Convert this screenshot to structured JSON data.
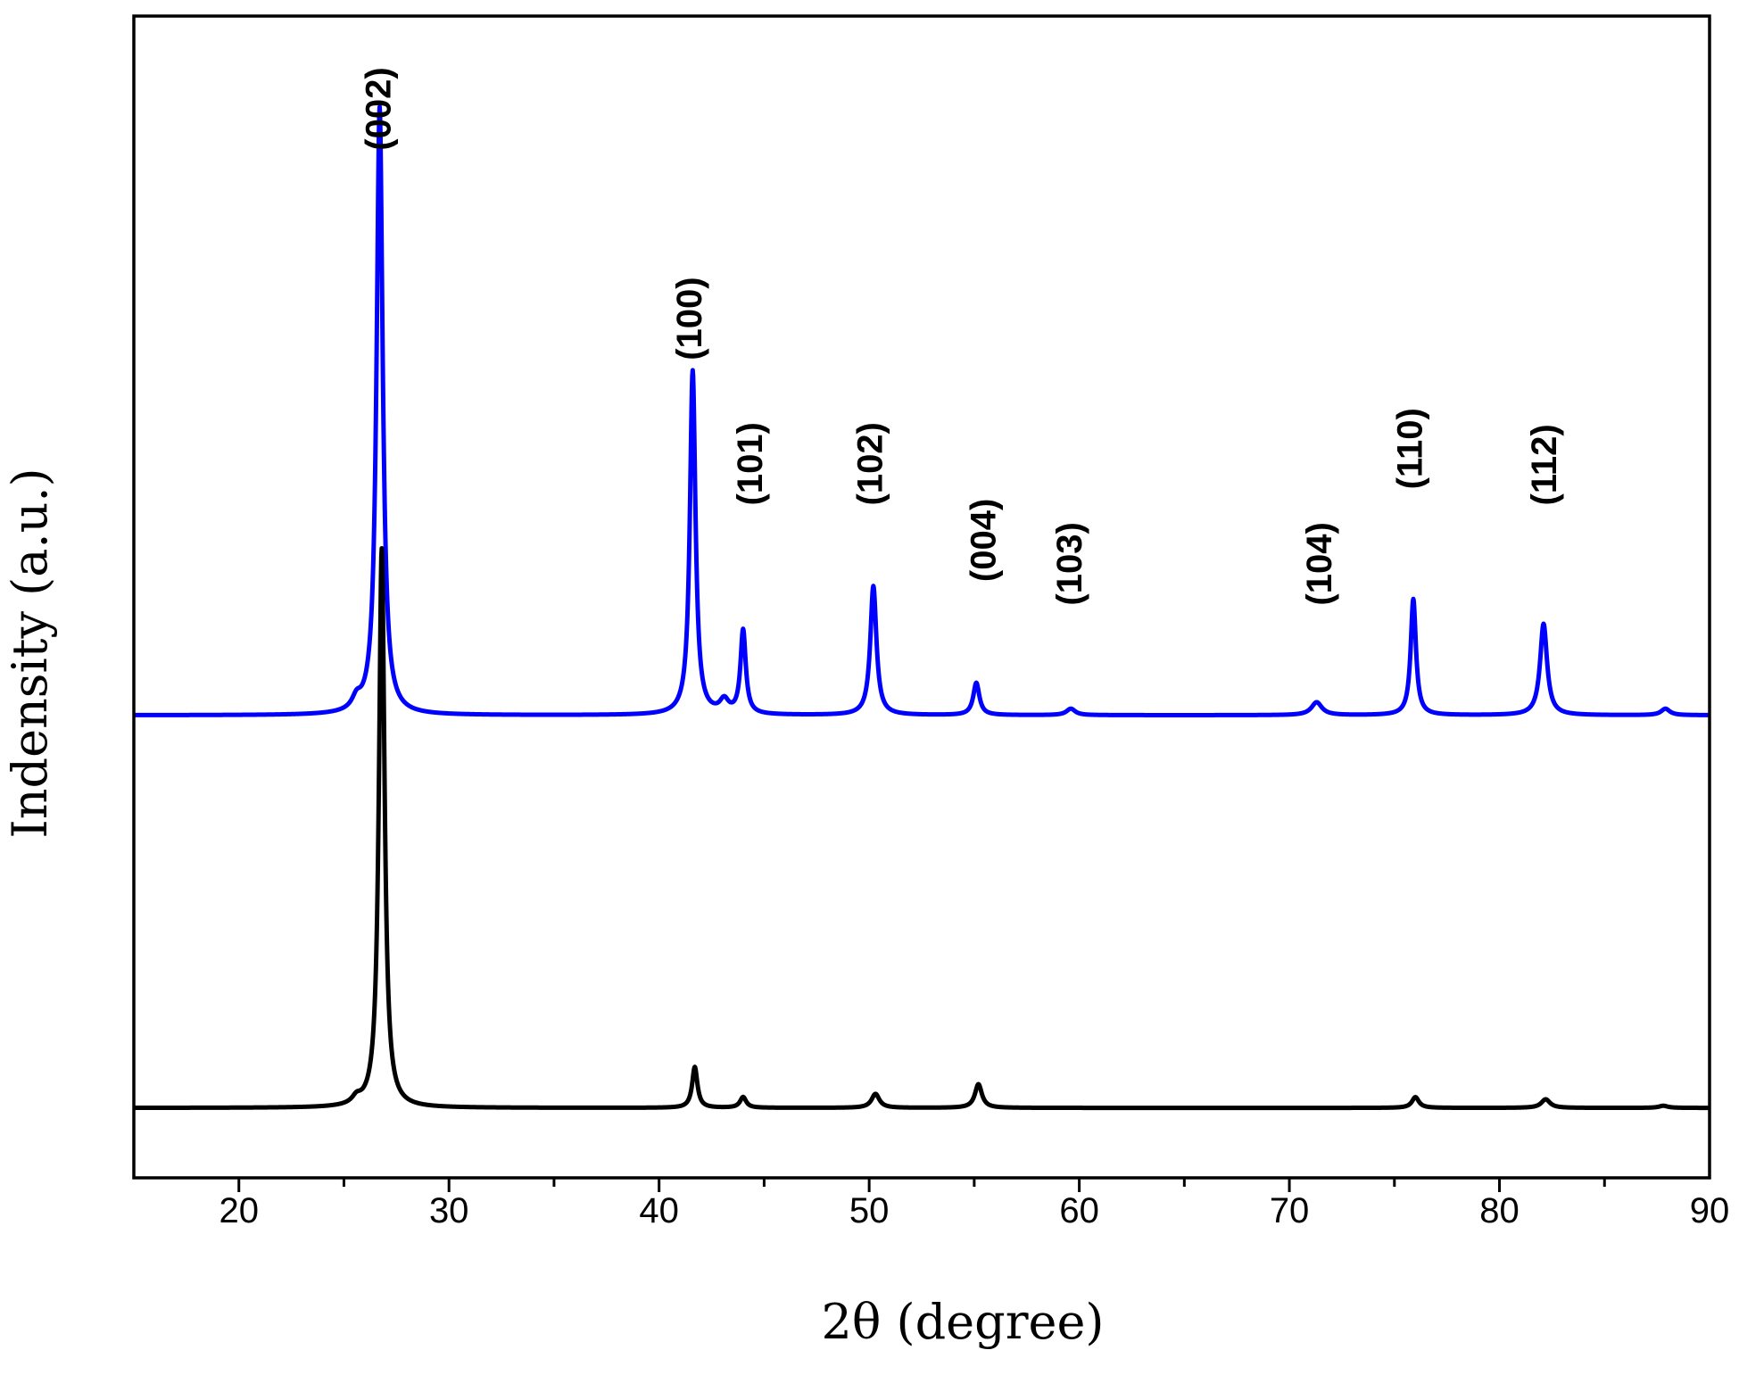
{
  "chart_data": {
    "type": "line",
    "title": "",
    "xlabel": "2θ (degree)",
    "ylabel": "Indensity (a.u.)",
    "xlim": [
      15,
      90
    ],
    "ylim": [
      0,
      1.08
    ],
    "x_major_ticks": [
      20,
      30,
      40,
      50,
      60,
      70,
      80,
      90
    ],
    "x_tick_labels": [
      "20",
      "30",
      "40",
      "50",
      "60",
      "70",
      "80",
      "90"
    ],
    "x_minor_step": 5,
    "y_tick_labels": false,
    "grid": false,
    "legend": "none",
    "series": [
      {
        "color": "#0000ff",
        "baseline": 0.43,
        "peaks": [
          {
            "x": 25.6,
            "height": 0.01,
            "width": 0.5
          },
          {
            "x": 26.7,
            "height": 0.565,
            "width": 0.35
          },
          {
            "x": 41.6,
            "height": 0.32,
            "width": 0.32
          },
          {
            "x": 43.1,
            "height": 0.012,
            "width": 0.5
          },
          {
            "x": 44.0,
            "height": 0.078,
            "width": 0.3
          },
          {
            "x": 50.2,
            "height": 0.12,
            "width": 0.35
          },
          {
            "x": 55.1,
            "height": 0.03,
            "width": 0.35
          },
          {
            "x": 59.6,
            "height": 0.006,
            "width": 0.5
          },
          {
            "x": 71.3,
            "height": 0.012,
            "width": 0.6
          },
          {
            "x": 75.9,
            "height": 0.108,
            "width": 0.3
          },
          {
            "x": 82.1,
            "height": 0.085,
            "width": 0.4
          },
          {
            "x": 87.9,
            "height": 0.006,
            "width": 0.5
          }
        ]
      },
      {
        "color": "#000000",
        "baseline": 0.065,
        "peaks": [
          {
            "x": 25.6,
            "height": 0.006,
            "width": 0.5
          },
          {
            "x": 26.8,
            "height": 0.52,
            "width": 0.32
          },
          {
            "x": 41.7,
            "height": 0.038,
            "width": 0.3
          },
          {
            "x": 44.0,
            "height": 0.01,
            "width": 0.35
          },
          {
            "x": 50.3,
            "height": 0.013,
            "width": 0.45
          },
          {
            "x": 55.2,
            "height": 0.022,
            "width": 0.4
          },
          {
            "x": 76.0,
            "height": 0.01,
            "width": 0.4
          },
          {
            "x": 82.2,
            "height": 0.008,
            "width": 0.5
          },
          {
            "x": 87.8,
            "height": 0.002,
            "width": 0.5
          }
        ]
      }
    ],
    "annotations": [
      {
        "text": "(002)",
        "x": 27.2,
        "y": 0.955
      },
      {
        "text": "(100)",
        "x": 42.0,
        "y": 0.76
      },
      {
        "text": "(101)",
        "x": 44.9,
        "y": 0.625
      },
      {
        "text": "(102)",
        "x": 50.6,
        "y": 0.625
      },
      {
        "text": "(004)",
        "x": 56.0,
        "y": 0.554
      },
      {
        "text": "(103)",
        "x": 60.1,
        "y": 0.532
      },
      {
        "text": "(104)",
        "x": 72.0,
        "y": 0.532
      },
      {
        "text": "(110)",
        "x": 76.3,
        "y": 0.64
      },
      {
        "text": "(112)",
        "x": 82.7,
        "y": 0.625
      }
    ]
  }
}
